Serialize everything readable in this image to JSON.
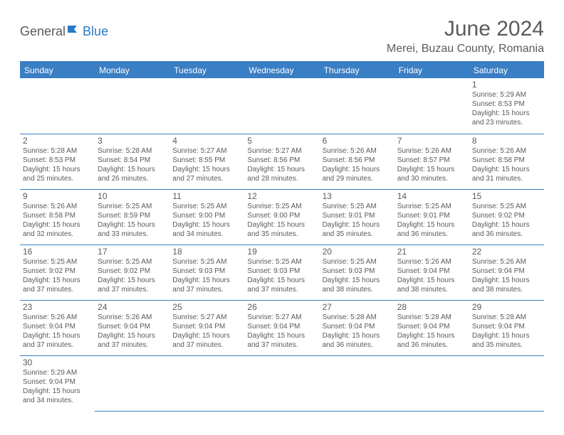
{
  "logo": {
    "general": "General",
    "blue": "Blue"
  },
  "title": "June 2024",
  "location": "Merei, Buzau County, Romania",
  "colors": {
    "header_bg": "#3a7ec4",
    "header_text": "#ffffff",
    "text": "#5a5a5a",
    "border": "#3a7ec4",
    "logo_gray": "#5a5a5a",
    "logo_blue": "#2a7ac4",
    "background": "#ffffff"
  },
  "typography": {
    "title_fontsize": 30,
    "location_fontsize": 16,
    "dayheader_fontsize": 12,
    "daynum_fontsize": 12,
    "detail_fontsize": 10
  },
  "dayHeaders": [
    "Sunday",
    "Monday",
    "Tuesday",
    "Wednesday",
    "Thursday",
    "Friday",
    "Saturday"
  ],
  "weeks": [
    [
      null,
      null,
      null,
      null,
      null,
      null,
      {
        "n": "1",
        "sr": "Sunrise: 5:29 AM",
        "ss": "Sunset: 8:53 PM",
        "d1": "Daylight: 15 hours",
        "d2": "and 23 minutes."
      }
    ],
    [
      {
        "n": "2",
        "sr": "Sunrise: 5:28 AM",
        "ss": "Sunset: 8:53 PM",
        "d1": "Daylight: 15 hours",
        "d2": "and 25 minutes."
      },
      {
        "n": "3",
        "sr": "Sunrise: 5:28 AM",
        "ss": "Sunset: 8:54 PM",
        "d1": "Daylight: 15 hours",
        "d2": "and 26 minutes."
      },
      {
        "n": "4",
        "sr": "Sunrise: 5:27 AM",
        "ss": "Sunset: 8:55 PM",
        "d1": "Daylight: 15 hours",
        "d2": "and 27 minutes."
      },
      {
        "n": "5",
        "sr": "Sunrise: 5:27 AM",
        "ss": "Sunset: 8:56 PM",
        "d1": "Daylight: 15 hours",
        "d2": "and 28 minutes."
      },
      {
        "n": "6",
        "sr": "Sunrise: 5:26 AM",
        "ss": "Sunset: 8:56 PM",
        "d1": "Daylight: 15 hours",
        "d2": "and 29 minutes."
      },
      {
        "n": "7",
        "sr": "Sunrise: 5:26 AM",
        "ss": "Sunset: 8:57 PM",
        "d1": "Daylight: 15 hours",
        "d2": "and 30 minutes."
      },
      {
        "n": "8",
        "sr": "Sunrise: 5:26 AM",
        "ss": "Sunset: 8:58 PM",
        "d1": "Daylight: 15 hours",
        "d2": "and 31 minutes."
      }
    ],
    [
      {
        "n": "9",
        "sr": "Sunrise: 5:26 AM",
        "ss": "Sunset: 8:58 PM",
        "d1": "Daylight: 15 hours",
        "d2": "and 32 minutes."
      },
      {
        "n": "10",
        "sr": "Sunrise: 5:25 AM",
        "ss": "Sunset: 8:59 PM",
        "d1": "Daylight: 15 hours",
        "d2": "and 33 minutes."
      },
      {
        "n": "11",
        "sr": "Sunrise: 5:25 AM",
        "ss": "Sunset: 9:00 PM",
        "d1": "Daylight: 15 hours",
        "d2": "and 34 minutes."
      },
      {
        "n": "12",
        "sr": "Sunrise: 5:25 AM",
        "ss": "Sunset: 9:00 PM",
        "d1": "Daylight: 15 hours",
        "d2": "and 35 minutes."
      },
      {
        "n": "13",
        "sr": "Sunrise: 5:25 AM",
        "ss": "Sunset: 9:01 PM",
        "d1": "Daylight: 15 hours",
        "d2": "and 35 minutes."
      },
      {
        "n": "14",
        "sr": "Sunrise: 5:25 AM",
        "ss": "Sunset: 9:01 PM",
        "d1": "Daylight: 15 hours",
        "d2": "and 36 minutes."
      },
      {
        "n": "15",
        "sr": "Sunrise: 5:25 AM",
        "ss": "Sunset: 9:02 PM",
        "d1": "Daylight: 15 hours",
        "d2": "and 36 minutes."
      }
    ],
    [
      {
        "n": "16",
        "sr": "Sunrise: 5:25 AM",
        "ss": "Sunset: 9:02 PM",
        "d1": "Daylight: 15 hours",
        "d2": "and 37 minutes."
      },
      {
        "n": "17",
        "sr": "Sunrise: 5:25 AM",
        "ss": "Sunset: 9:02 PM",
        "d1": "Daylight: 15 hours",
        "d2": "and 37 minutes."
      },
      {
        "n": "18",
        "sr": "Sunrise: 5:25 AM",
        "ss": "Sunset: 9:03 PM",
        "d1": "Daylight: 15 hours",
        "d2": "and 37 minutes."
      },
      {
        "n": "19",
        "sr": "Sunrise: 5:25 AM",
        "ss": "Sunset: 9:03 PM",
        "d1": "Daylight: 15 hours",
        "d2": "and 37 minutes."
      },
      {
        "n": "20",
        "sr": "Sunrise: 5:25 AM",
        "ss": "Sunset: 9:03 PM",
        "d1": "Daylight: 15 hours",
        "d2": "and 38 minutes."
      },
      {
        "n": "21",
        "sr": "Sunrise: 5:26 AM",
        "ss": "Sunset: 9:04 PM",
        "d1": "Daylight: 15 hours",
        "d2": "and 38 minutes."
      },
      {
        "n": "22",
        "sr": "Sunrise: 5:26 AM",
        "ss": "Sunset: 9:04 PM",
        "d1": "Daylight: 15 hours",
        "d2": "and 38 minutes."
      }
    ],
    [
      {
        "n": "23",
        "sr": "Sunrise: 5:26 AM",
        "ss": "Sunset: 9:04 PM",
        "d1": "Daylight: 15 hours",
        "d2": "and 37 minutes."
      },
      {
        "n": "24",
        "sr": "Sunrise: 5:26 AM",
        "ss": "Sunset: 9:04 PM",
        "d1": "Daylight: 15 hours",
        "d2": "and 37 minutes."
      },
      {
        "n": "25",
        "sr": "Sunrise: 5:27 AM",
        "ss": "Sunset: 9:04 PM",
        "d1": "Daylight: 15 hours",
        "d2": "and 37 minutes."
      },
      {
        "n": "26",
        "sr": "Sunrise: 5:27 AM",
        "ss": "Sunset: 9:04 PM",
        "d1": "Daylight: 15 hours",
        "d2": "and 37 minutes."
      },
      {
        "n": "27",
        "sr": "Sunrise: 5:28 AM",
        "ss": "Sunset: 9:04 PM",
        "d1": "Daylight: 15 hours",
        "d2": "and 36 minutes."
      },
      {
        "n": "28",
        "sr": "Sunrise: 5:28 AM",
        "ss": "Sunset: 9:04 PM",
        "d1": "Daylight: 15 hours",
        "d2": "and 36 minutes."
      },
      {
        "n": "29",
        "sr": "Sunrise: 5:28 AM",
        "ss": "Sunset: 9:04 PM",
        "d1": "Daylight: 15 hours",
        "d2": "and 35 minutes."
      }
    ],
    [
      {
        "n": "30",
        "sr": "Sunrise: 5:29 AM",
        "ss": "Sunset: 9:04 PM",
        "d1": "Daylight: 15 hours",
        "d2": "and 34 minutes."
      },
      null,
      null,
      null,
      null,
      null,
      null
    ]
  ]
}
